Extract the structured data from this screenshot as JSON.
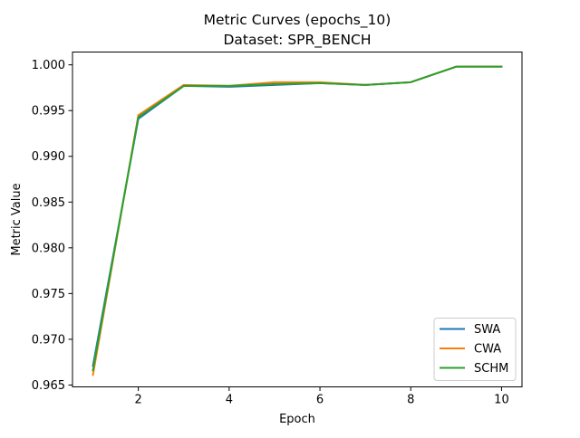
{
  "chart_data": {
    "type": "line",
    "title": "Metric Curves (epochs_10)",
    "subtitle": "Dataset: SPR_BENCH",
    "xlabel": "Epoch",
    "ylabel": "Metric Value",
    "x": [
      1,
      2,
      3,
      4,
      5,
      6,
      7,
      8,
      9,
      10
    ],
    "xlim": [
      0.55,
      10.45
    ],
    "ylim": [
      0.9648,
      1.0014
    ],
    "xticks": [
      2,
      4,
      6,
      8,
      10
    ],
    "xtick_labels": [
      "2",
      "4",
      "6",
      "8",
      "10"
    ],
    "yticks": [
      0.965,
      0.97,
      0.975,
      0.98,
      0.985,
      0.99,
      0.995,
      1.0
    ],
    "ytick_labels": [
      "0.965",
      "0.970",
      "0.975",
      "0.980",
      "0.985",
      "0.990",
      "0.995",
      "1.000"
    ],
    "grid": false,
    "legend_position": "lower-right",
    "series": [
      {
        "name": "SWA",
        "color": "#1f77b4",
        "values": [
          0.9671,
          0.9941,
          0.9977,
          0.9976,
          0.9978,
          0.998,
          0.9978,
          0.9981,
          0.9998,
          0.9998
        ]
      },
      {
        "name": "CWA",
        "color": "#ff7f0e",
        "values": [
          0.9661,
          0.9945,
          0.9978,
          0.9977,
          0.9981,
          0.9981,
          0.9978,
          0.9981,
          0.9998,
          0.9998
        ]
      },
      {
        "name": "SCHM",
        "color": "#2ca02c",
        "values": [
          0.9666,
          0.9943,
          0.9977,
          0.9977,
          0.9979,
          0.998,
          0.9978,
          0.9981,
          0.9998,
          0.9998
        ]
      }
    ]
  }
}
